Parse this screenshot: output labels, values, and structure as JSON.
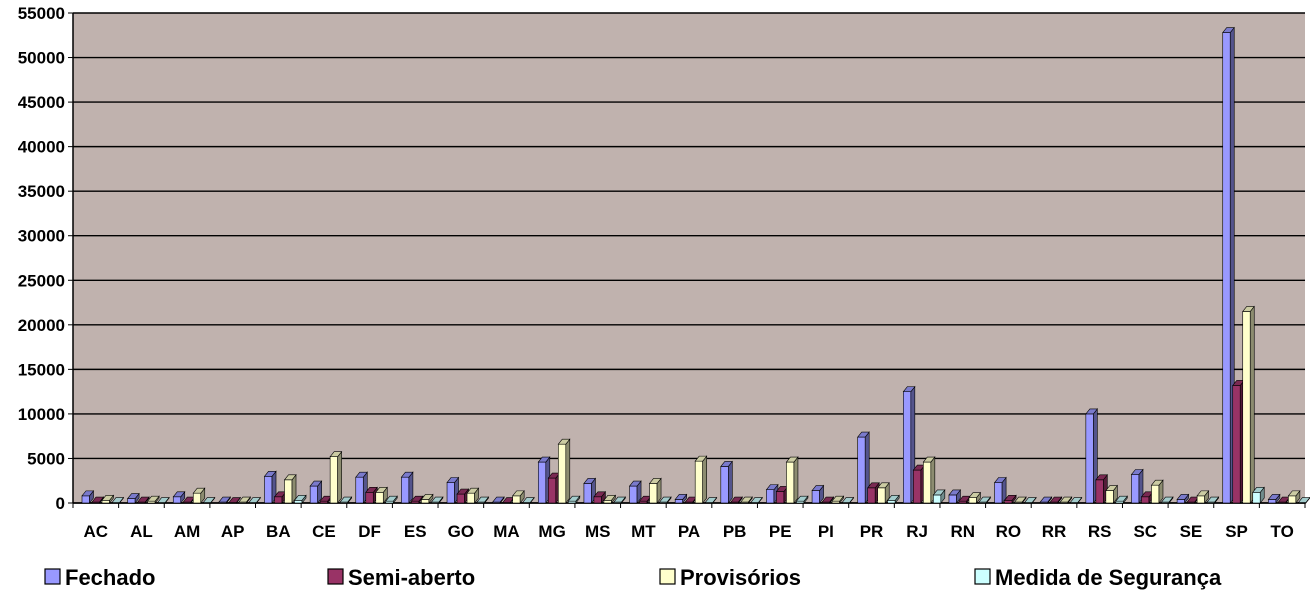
{
  "chart_data": {
    "type": "bar",
    "title": "",
    "xlabel": "",
    "ylabel": "",
    "ylim": [
      0,
      55000
    ],
    "y_ticks": [
      0,
      5000,
      10000,
      15000,
      20000,
      25000,
      30000,
      35000,
      40000,
      45000,
      50000,
      55000
    ],
    "grid": true,
    "legend_position": "bottom",
    "plot_background": "#c0b2ae",
    "categories": [
      "AC",
      "AL",
      "AM",
      "AP",
      "BA",
      "CE",
      "DF",
      "ES",
      "GO",
      "MA",
      "MG",
      "MS",
      "MT",
      "PA",
      "PB",
      "PE",
      "PI",
      "PR",
      "RJ",
      "RN",
      "RO",
      "RR",
      "RS",
      "SC",
      "SE",
      "SP",
      "TO"
    ],
    "series": [
      {
        "name": "Fechado",
        "color": "#9999ff",
        "values": [
          800,
          500,
          700,
          100,
          3000,
          1900,
          2900,
          2900,
          2300,
          100,
          4600,
          2200,
          1900,
          400,
          4100,
          1500,
          1400,
          7400,
          12500,
          900,
          2300,
          100,
          10000,
          3200,
          400,
          52800,
          400
        ]
      },
      {
        "name": "Semi-aberto",
        "color": "#993366",
        "values": [
          100,
          100,
          100,
          50,
          700,
          200,
          1200,
          200,
          1000,
          50,
          2800,
          700,
          200,
          100,
          100,
          1300,
          100,
          1700,
          3700,
          200,
          300,
          100,
          2600,
          700,
          100,
          13200,
          100
        ]
      },
      {
        "name": "Provisórios",
        "color": "#ffffcc",
        "values": [
          300,
          200,
          1100,
          100,
          2600,
          5200,
          1200,
          400,
          1100,
          800,
          6600,
          300,
          2200,
          4700,
          100,
          4600,
          200,
          1700,
          4600,
          600,
          100,
          100,
          1400,
          2000,
          800,
          21500,
          800
        ]
      },
      {
        "name": "Medida de Segurança",
        "color": "#ccffff",
        "values": [
          50,
          50,
          50,
          50,
          300,
          100,
          200,
          100,
          100,
          50,
          200,
          100,
          100,
          50,
          50,
          200,
          50,
          300,
          900,
          100,
          50,
          50,
          200,
          100,
          100,
          1200,
          50
        ]
      }
    ]
  }
}
